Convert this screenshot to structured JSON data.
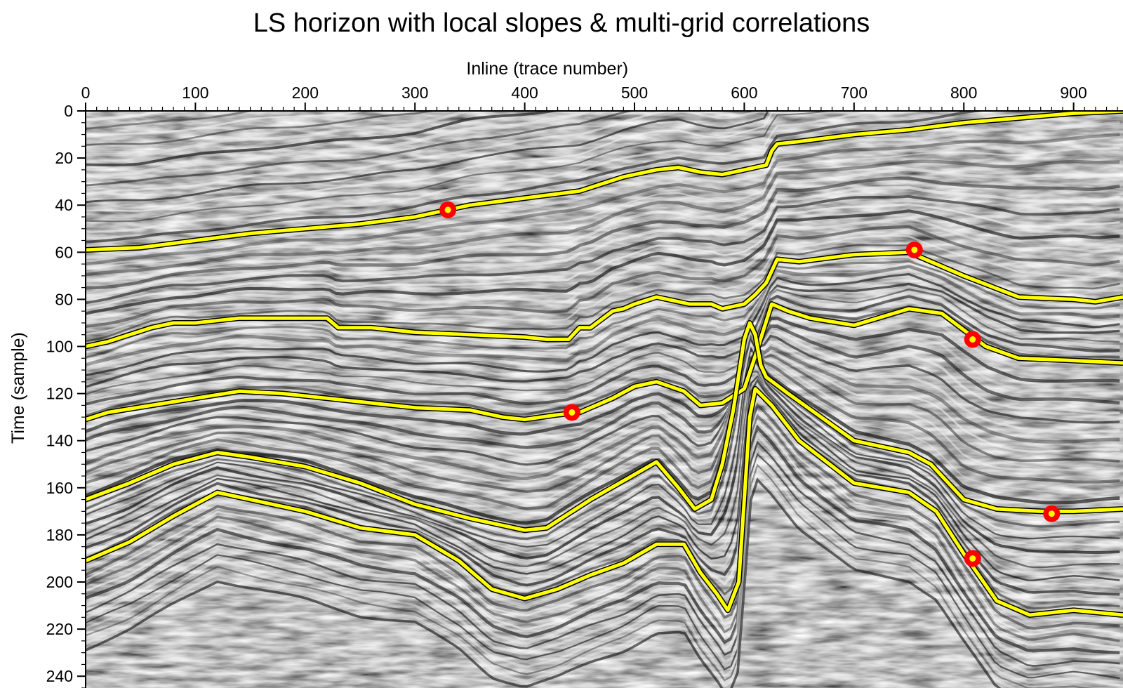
{
  "chart_data": {
    "type": "line",
    "title": "LS horizon with local slopes & multi-grid correlations",
    "xlabel": "Inline (trace number)",
    "ylabel": "Time (sample)",
    "x_axis_position": "top",
    "y_axis_inverted": true,
    "xlim": [
      0,
      945
    ],
    "ylim": [
      0,
      245
    ],
    "x_ticks": [
      0,
      100,
      200,
      300,
      400,
      500,
      600,
      700,
      800,
      900
    ],
    "y_ticks": [
      0,
      20,
      40,
      60,
      80,
      100,
      120,
      140,
      160,
      180,
      200,
      220,
      240
    ],
    "grid": false,
    "legend": "none",
    "colors": {
      "horizon": "#ffff00",
      "horizon_edge": "#000000",
      "control_point": "#ff0000",
      "control_point_center": "#ffff00",
      "background": "seismic grayscale section"
    },
    "series": [
      {
        "x": [
          0,
          50,
          100,
          150,
          200,
          250,
          300,
          330,
          350,
          400,
          450,
          490,
          520,
          540,
          560,
          580,
          600,
          610,
          620,
          625,
          630,
          650,
          700,
          750,
          800,
          850,
          900,
          945
        ],
        "y": [
          59,
          58,
          55,
          52,
          50,
          48,
          45,
          42,
          40,
          37,
          34,
          28,
          25,
          24,
          26,
          27,
          25,
          24,
          23,
          17,
          14,
          13,
          10,
          8,
          5,
          3,
          1,
          0
        ]
      },
      {
        "x": [
          0,
          20,
          40,
          60,
          80,
          100,
          140,
          180,
          220,
          230,
          260,
          300,
          350,
          400,
          420,
          440,
          450,
          460,
          480,
          490,
          500,
          520,
          550,
          570,
          580,
          600,
          610,
          620,
          630,
          650,
          700,
          750,
          800,
          850,
          900,
          920,
          945
        ],
        "y": [
          100,
          98,
          95,
          92,
          90,
          90,
          88,
          88,
          88,
          92,
          92,
          94,
          95,
          96,
          97,
          97,
          92,
          92,
          85,
          84,
          82,
          79,
          82,
          82,
          84,
          82,
          78,
          73,
          63,
          64,
          61,
          60,
          70,
          79,
          80,
          81,
          79
        ]
      },
      {
        "x": [
          0,
          20,
          60,
          100,
          140,
          180,
          220,
          260,
          300,
          350,
          380,
          400,
          430,
          450,
          480,
          500,
          520,
          545,
          560,
          580,
          600,
          610,
          625,
          640,
          660,
          700,
          750,
          780,
          800,
          820,
          850,
          900,
          945
        ],
        "y": [
          131,
          128,
          125,
          122,
          119,
          120,
          122,
          124,
          126,
          127,
          130,
          131,
          129,
          128,
          122,
          117,
          115,
          119,
          125,
          124,
          118,
          104,
          82,
          85,
          88,
          91,
          84,
          86,
          93,
          100,
          105,
          106,
          107
        ]
      },
      {
        "x": [
          0,
          40,
          80,
          120,
          150,
          200,
          250,
          300,
          350,
          400,
          420,
          430,
          460,
          490,
          520,
          540,
          555,
          570,
          580,
          590,
          600,
          605,
          610,
          615,
          620,
          640,
          670,
          700,
          750,
          770,
          800,
          830,
          870,
          900,
          945
        ],
        "y": [
          165,
          158,
          150,
          145,
          147,
          151,
          158,
          167,
          173,
          178,
          177,
          174,
          165,
          157,
          149,
          160,
          169,
          165,
          150,
          127,
          97,
          90,
          95,
          108,
          113,
          120,
          130,
          140,
          145,
          150,
          165,
          169,
          170,
          170,
          169
        ]
      },
      {
        "x": [
          0,
          40,
          80,
          120,
          150,
          200,
          250,
          300,
          340,
          370,
          400,
          430,
          460,
          490,
          520,
          545,
          560,
          575,
          585,
          595,
          600,
          605,
          610,
          625,
          650,
          700,
          750,
          775,
          800,
          830,
          860,
          900,
          945
        ],
        "y": [
          191,
          183,
          172,
          162,
          165,
          170,
          177,
          180,
          191,
          203,
          207,
          203,
          197,
          192,
          184,
          184,
          196,
          205,
          212,
          200,
          165,
          130,
          118,
          125,
          140,
          158,
          162,
          170,
          188,
          208,
          214,
          212,
          214
        ]
      }
    ],
    "control_points": {
      "x": [
        330,
        443,
        755,
        808,
        880,
        808
      ],
      "y": [
        42,
        128,
        59,
        97,
        171,
        190
      ]
    }
  }
}
